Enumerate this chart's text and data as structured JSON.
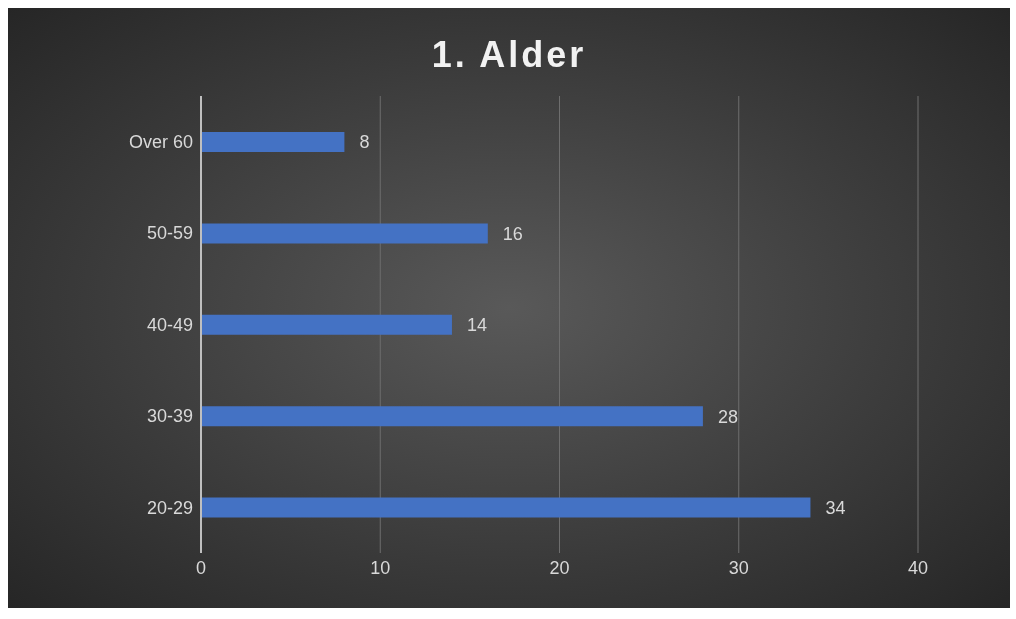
{
  "chart_data": {
    "type": "bar",
    "orientation": "horizontal",
    "title": "1. Alder",
    "categories": [
      "Over 60",
      "50-59",
      "40-49",
      "30-39",
      "20-29"
    ],
    "values": [
      8,
      16,
      14,
      28,
      34
    ],
    "color": "#4472c4",
    "xlim": [
      0,
      40
    ],
    "xticks": [
      0,
      10,
      20,
      30,
      40
    ],
    "grid": "x",
    "data_labels": true
  }
}
